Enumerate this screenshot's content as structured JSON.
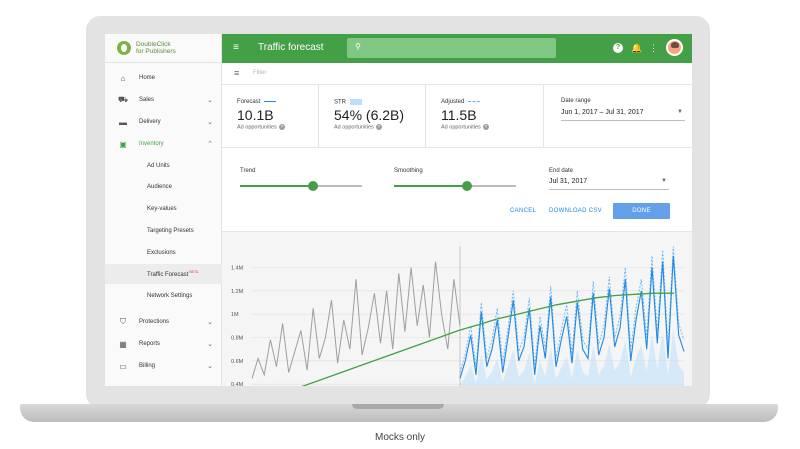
{
  "app": {
    "brand_line1": "DoubleClick",
    "brand_line2": "for Publishers",
    "page_title": "Traffic forecast"
  },
  "filter": {
    "placeholder": "Filter"
  },
  "sidebar": {
    "items": [
      {
        "label": "Home",
        "icon": "home-icon",
        "glyph": "⌂",
        "chevron": ""
      },
      {
        "label": "Sales",
        "icon": "cart-icon",
        "glyph": "⛟",
        "chevron": "⌄"
      },
      {
        "label": "Delivery",
        "icon": "truck-icon",
        "glyph": "▬",
        "chevron": "⌄"
      },
      {
        "label": "Inventory",
        "icon": "inventory-icon",
        "glyph": "▣",
        "chevron": "⌃"
      },
      {
        "label": "Ad Units"
      },
      {
        "label": "Audience"
      },
      {
        "label": "Key-values"
      },
      {
        "label": "Targeting Presets"
      },
      {
        "label": "Exclusions"
      },
      {
        "label": "Traffic Forecast",
        "badge": "BETA"
      },
      {
        "label": "Network Settings"
      },
      {
        "label": "Protections",
        "icon": "shield-icon",
        "glyph": "⛉",
        "chevron": "⌄"
      },
      {
        "label": "Reports",
        "icon": "reports-icon",
        "glyph": "▦",
        "chevron": "⌄"
      },
      {
        "label": "Billing",
        "icon": "billing-icon",
        "glyph": "▭",
        "chevron": "⌄"
      }
    ]
  },
  "topbar": {
    "menu_glyph": "≡",
    "search_glyph": "⚲",
    "help_glyph": "?",
    "bell_glyph": "🔔",
    "more_glyph": "⋮"
  },
  "stats": {
    "forecast": {
      "label": "Forecast",
      "value": "10.1B",
      "sub": "Ad opportunities"
    },
    "str": {
      "label": "STR",
      "value": "54% (6.2B)",
      "sub": "Ad opportunities"
    },
    "adjusted": {
      "label": "Adjusted",
      "value": "11.5B",
      "sub": "Ad opportunities"
    },
    "date_range": {
      "label": "Date range",
      "value": "Jun 1, 2017 – Jul 31, 2017"
    }
  },
  "controls": {
    "trend": {
      "label": "Trend",
      "level": 0.6
    },
    "smoothing": {
      "label": "Smoothing",
      "level": 0.6
    },
    "end_date": {
      "label": "End date",
      "value": "Jul 31, 2017"
    },
    "cancel_label": "CANCEL",
    "download_label": "DOWNLOAD CSV",
    "done_label": "DONE"
  },
  "colors": {
    "primary": "#43a047",
    "accent_blue": "#1e88e5",
    "history_gray": "#9e9e9e",
    "band_blue": "#bbdefb"
  },
  "caption": "Mocks only",
  "chart_data": {
    "type": "line",
    "yticks": [
      "1.4M",
      "1.2M",
      "1M",
      "0.8M",
      "0.6M",
      "0.4M"
    ],
    "ylim": [
      0.35,
      1.55
    ],
    "history": [
      0.45,
      0.62,
      0.48,
      0.78,
      0.55,
      0.92,
      0.5,
      0.68,
      0.86,
      0.52,
      1.05,
      0.62,
      0.8,
      1.12,
      0.58,
      0.95,
      0.7,
      1.3,
      0.65,
      0.88,
      1.18,
      0.75,
      1.2,
      0.7,
      1.35,
      0.85,
      1.4,
      0.9,
      1.25,
      0.8,
      1.45,
      1.0,
      0.7,
      1.3,
      0.9
    ],
    "forecast": [
      0.45,
      0.6,
      0.82,
      0.48,
      1.02,
      0.55,
      0.7,
      0.95,
      0.5,
      0.8,
      1.12,
      0.6,
      0.72,
      1.05,
      0.48,
      0.9,
      0.62,
      1.15,
      0.55,
      0.78,
      0.98,
      0.58,
      1.1,
      0.7,
      0.62,
      1.18,
      0.65,
      0.8,
      1.22,
      0.72,
      0.88,
      1.3,
      0.6,
      0.95,
      1.2,
      0.7,
      1.4,
      0.75,
      1.45,
      0.62,
      1.5,
      0.82,
      0.68
    ],
    "adjusted": [
      0.5,
      0.66,
      0.9,
      0.55,
      1.1,
      0.62,
      0.78,
      1.05,
      0.58,
      0.88,
      1.2,
      0.68,
      0.8,
      1.14,
      0.56,
      0.98,
      0.7,
      1.24,
      0.62,
      0.86,
      1.08,
      0.66,
      1.2,
      0.78,
      0.7,
      1.28,
      0.74,
      0.9,
      1.32,
      0.8,
      0.98,
      1.4,
      0.7,
      1.05,
      1.3,
      0.8,
      1.5,
      0.85,
      1.55,
      0.72,
      1.58,
      0.92,
      0.78
    ],
    "trend": [
      0.38,
      0.44,
      0.5,
      0.56,
      0.62,
      0.68,
      0.74,
      0.8,
      0.86,
      0.91,
      0.96,
      1.0,
      1.04,
      1.08,
      1.11,
      1.14,
      1.16,
      1.17,
      1.18,
      1.18
    ]
  }
}
